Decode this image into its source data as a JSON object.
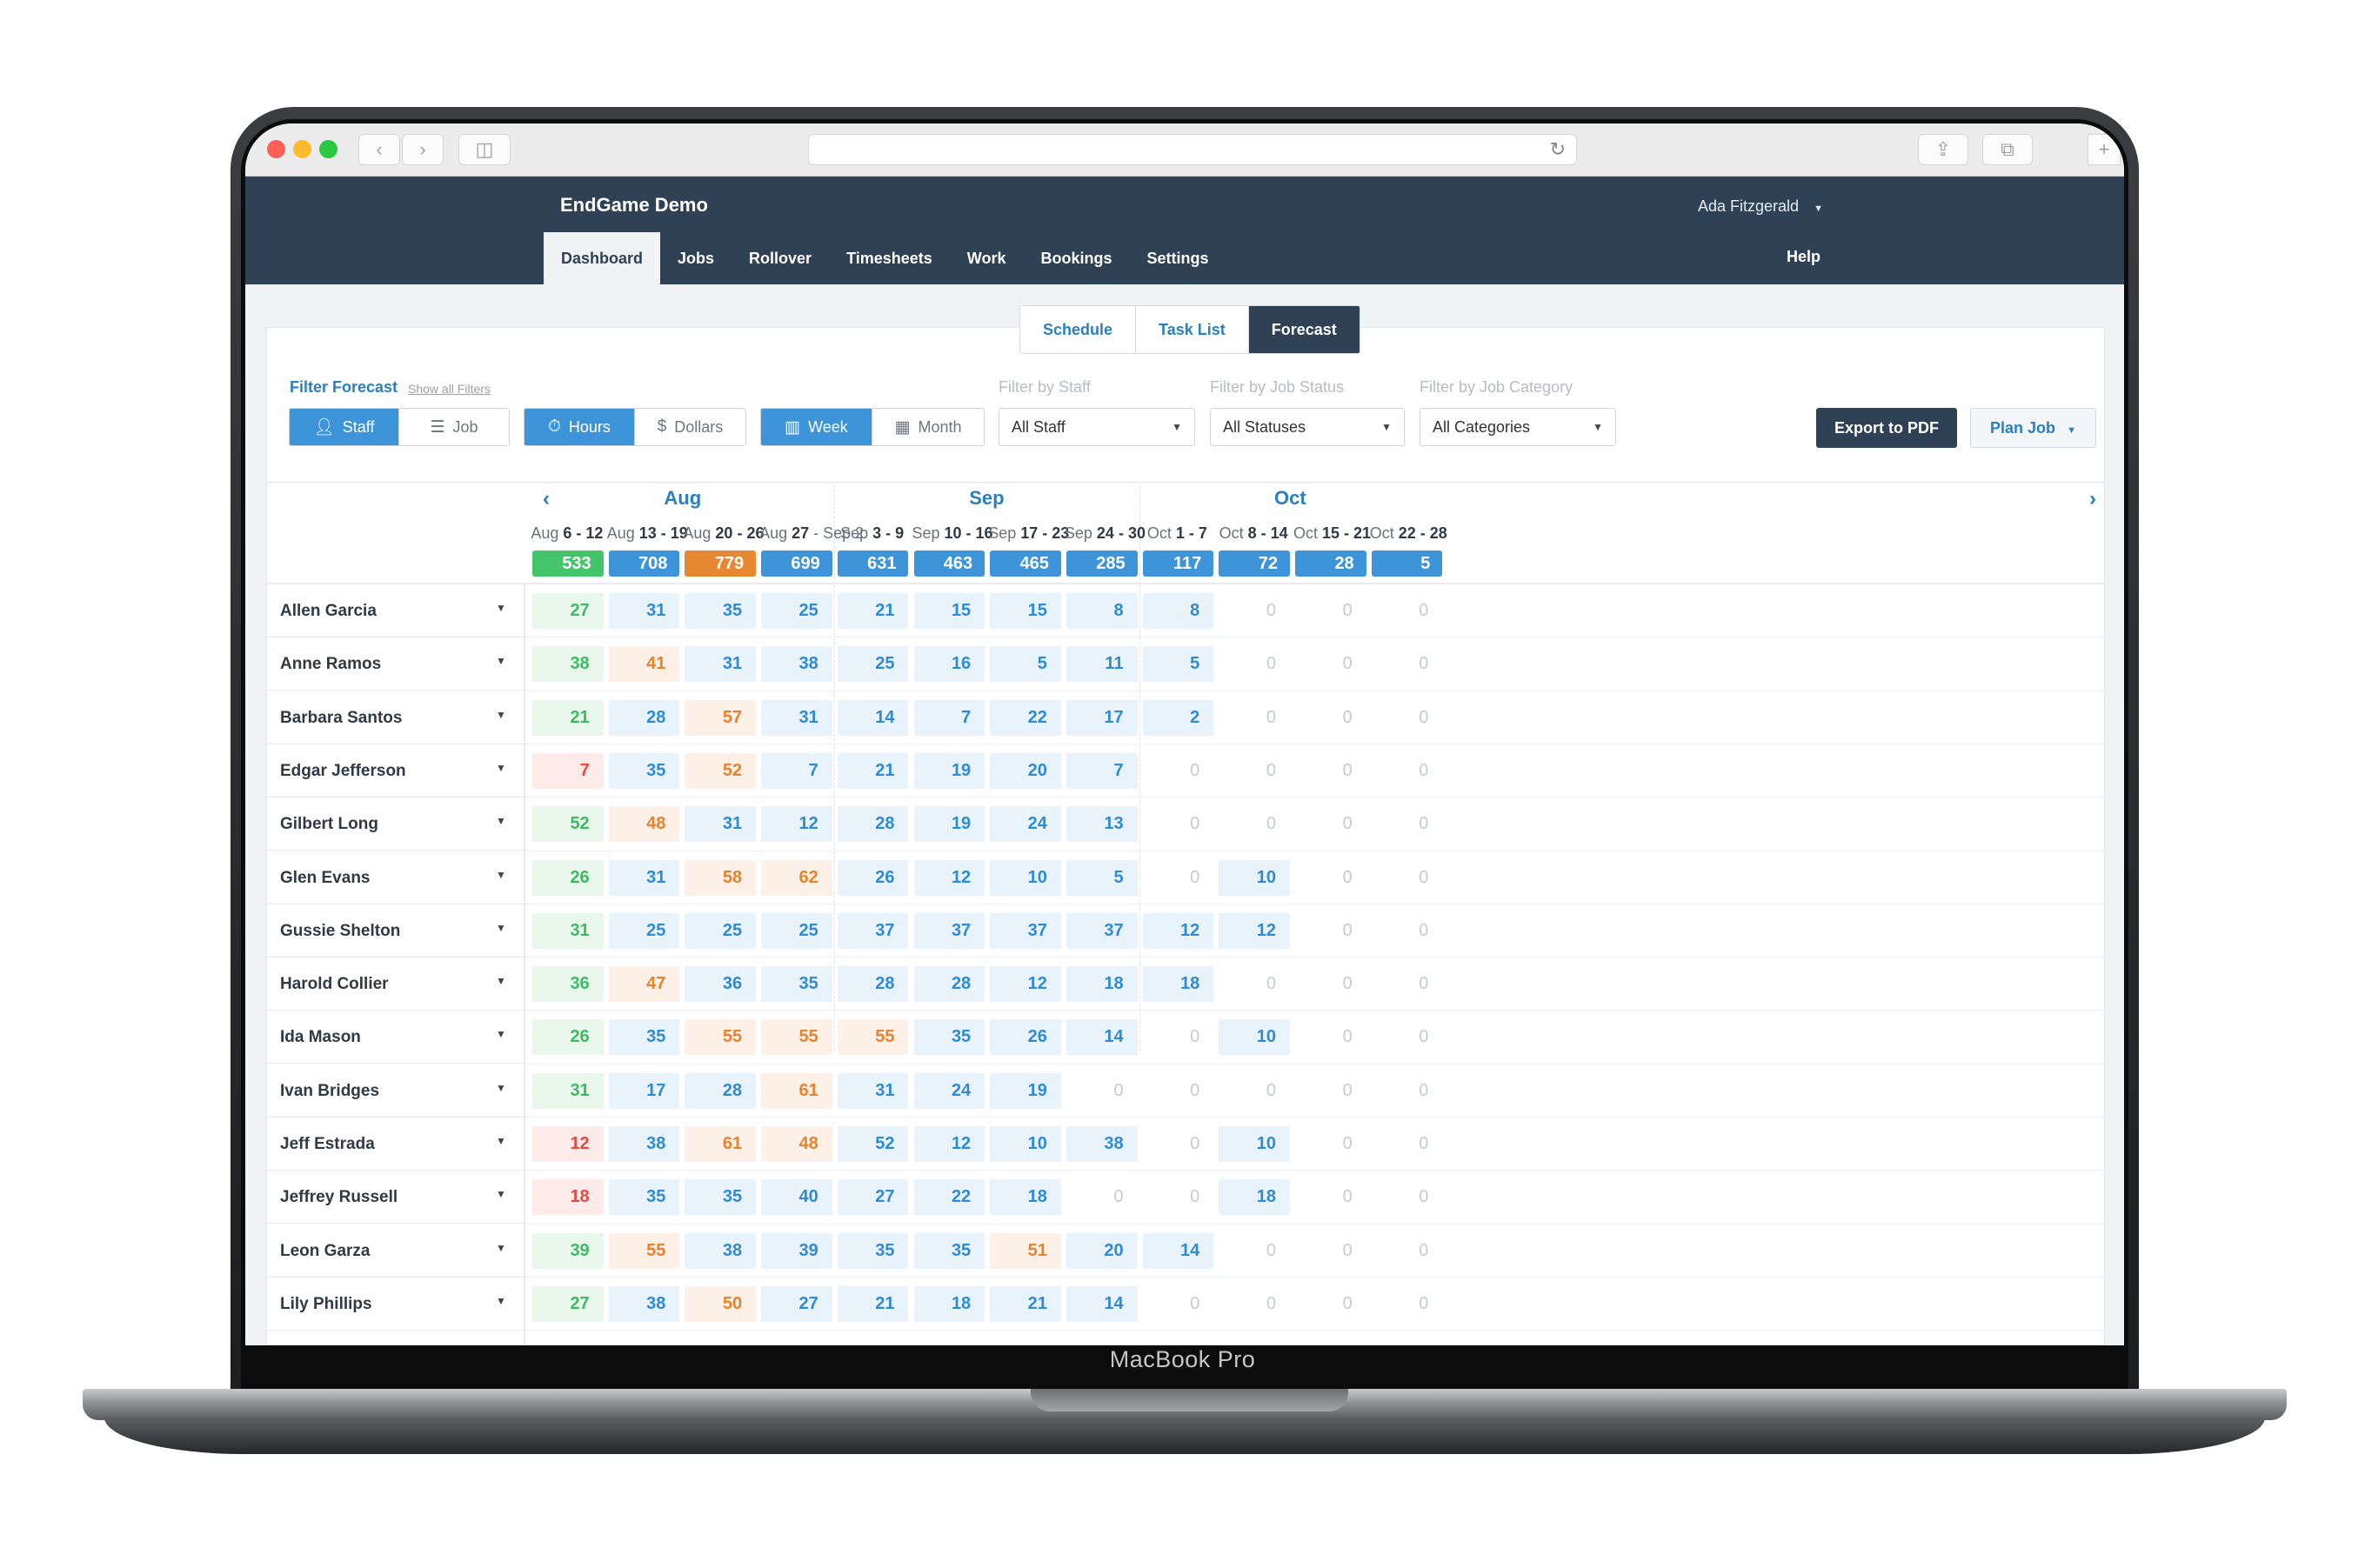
{
  "device": {
    "label": "MacBook Pro"
  },
  "app": {
    "title": "EndGame Demo",
    "user": "Ada Fitzgerald",
    "nav": [
      "Dashboard",
      "Jobs",
      "Rollover",
      "Timesheets",
      "Work",
      "Bookings",
      "Settings"
    ],
    "nav_active": "Dashboard",
    "help": "Help"
  },
  "subtabs": {
    "items": [
      "Schedule",
      "Task List",
      "Forecast"
    ],
    "active": "Forecast"
  },
  "filters": {
    "title": "Filter Forecast",
    "show_all": "Show all Filters",
    "group_by": {
      "options": [
        "Staff",
        "Job"
      ],
      "active": "Staff"
    },
    "measure": {
      "options": [
        "Hours",
        "Dollars"
      ],
      "active": "Hours"
    },
    "period": {
      "options": [
        "Week",
        "Month"
      ],
      "active": "Week"
    },
    "staff": {
      "label": "Filter by Staff",
      "value": "All Staff"
    },
    "status": {
      "label": "Filter by Job Status",
      "value": "All Statuses"
    },
    "category": {
      "label": "Filter by Job Category",
      "value": "All Categories"
    }
  },
  "actions": {
    "export": "Export to PDF",
    "plan": "Plan Job"
  },
  "forecast": {
    "months": [
      "Aug",
      "Sep",
      "Oct"
    ],
    "weeks": [
      {
        "pre": "Aug ",
        "bold": "6 - 12",
        "post": ""
      },
      {
        "pre": "Aug ",
        "bold": "13 - 19",
        "post": ""
      },
      {
        "pre": "Aug ",
        "bold": "20 - 26",
        "post": ""
      },
      {
        "pre": "Aug ",
        "bold": "27",
        "post": " - Sep 2"
      },
      {
        "pre": "Sep ",
        "bold": "3 - 9",
        "post": ""
      },
      {
        "pre": "Sep ",
        "bold": "10 - 16",
        "post": ""
      },
      {
        "pre": "Sep ",
        "bold": "17 - 23",
        "post": ""
      },
      {
        "pre": "Sep ",
        "bold": "24 - 30",
        "post": ""
      },
      {
        "pre": "Oct ",
        "bold": "1 - 7",
        "post": ""
      },
      {
        "pre": "Oct ",
        "bold": "8 - 14",
        "post": ""
      },
      {
        "pre": "Oct ",
        "bold": "15 - 21",
        "post": ""
      },
      {
        "pre": "Oct ",
        "bold": "22 - 28",
        "post": ""
      }
    ],
    "totals": [
      "533",
      "708",
      "779",
      "699",
      "631",
      "463",
      "465",
      "285",
      "117",
      "72",
      "28",
      "5"
    ],
    "total_colors": [
      "green",
      "blue",
      "orange",
      "blue",
      "blue",
      "blue",
      "blue",
      "blue",
      "blue",
      "blue",
      "blue",
      "blue"
    ],
    "rows": [
      {
        "name": "Allen Garcia",
        "values": [
          "27",
          "31",
          "35",
          "25",
          "21",
          "15",
          "15",
          "8",
          "8",
          "0",
          "0",
          "0"
        ],
        "status": "gbbbbbbbbzzz"
      },
      {
        "name": "Anne Ramos",
        "values": [
          "38",
          "41",
          "31",
          "38",
          "25",
          "16",
          "5",
          "11",
          "5",
          "0",
          "0",
          "0"
        ],
        "status": "gobbbbbbbzzz"
      },
      {
        "name": "Barbara Santos",
        "values": [
          "21",
          "28",
          "57",
          "31",
          "14",
          "7",
          "22",
          "17",
          "2",
          "0",
          "0",
          "0"
        ],
        "status": "gbobbbbbbzzz"
      },
      {
        "name": "Edgar Jefferson",
        "values": [
          "7",
          "35",
          "52",
          "7",
          "21",
          "19",
          "20",
          "7",
          "0",
          "0",
          "0",
          "0"
        ],
        "status": "rbobbbbbzzzz"
      },
      {
        "name": "Gilbert Long",
        "values": [
          "52",
          "48",
          "31",
          "12",
          "28",
          "19",
          "24",
          "13",
          "0",
          "0",
          "0",
          "0"
        ],
        "status": "gobbbbbbzzzz"
      },
      {
        "name": "Glen Evans",
        "values": [
          "26",
          "31",
          "58",
          "62",
          "26",
          "12",
          "10",
          "5",
          "0",
          "10",
          "0",
          "0"
        ],
        "status": "gboobbbbzbzz"
      },
      {
        "name": "Gussie Shelton",
        "values": [
          "31",
          "25",
          "25",
          "25",
          "37",
          "37",
          "37",
          "37",
          "12",
          "12",
          "0",
          "0"
        ],
        "status": "gbbbbbbbbbzz"
      },
      {
        "name": "Harold Collier",
        "values": [
          "36",
          "47",
          "36",
          "35",
          "28",
          "28",
          "12",
          "18",
          "18",
          "0",
          "0",
          "0"
        ],
        "status": "gobbbbbbbzzz"
      },
      {
        "name": "Ida Mason",
        "values": [
          "26",
          "35",
          "55",
          "55",
          "55",
          "35",
          "26",
          "14",
          "0",
          "10",
          "0",
          "0"
        ],
        "status": "gbooobbbzbzz"
      },
      {
        "name": "Ivan Bridges",
        "values": [
          "31",
          "17",
          "28",
          "61",
          "31",
          "24",
          "19",
          "0",
          "0",
          "0",
          "0",
          "0"
        ],
        "status": "gbbobbbzzzzz"
      },
      {
        "name": "Jeff Estrada",
        "values": [
          "12",
          "38",
          "61",
          "48",
          "52",
          "12",
          "10",
          "38",
          "0",
          "10",
          "0",
          "0"
        ],
        "status": "rboobbbbzbzz"
      },
      {
        "name": "Jeffrey Russell",
        "values": [
          "18",
          "35",
          "35",
          "40",
          "27",
          "22",
          "18",
          "0",
          "0",
          "18",
          "0",
          "0"
        ],
        "status": "rbbbbbbzzbzz"
      },
      {
        "name": "Leon Garza",
        "values": [
          "39",
          "55",
          "38",
          "39",
          "35",
          "35",
          "51",
          "20",
          "14",
          "0",
          "0",
          "0"
        ],
        "status": "gobbbbobbzzz"
      },
      {
        "name": "Lily Phillips",
        "values": [
          "27",
          "38",
          "50",
          "27",
          "21",
          "18",
          "21",
          "14",
          "0",
          "0",
          "0",
          "0"
        ],
        "status": "gbobbbbbzzzz"
      }
    ]
  }
}
